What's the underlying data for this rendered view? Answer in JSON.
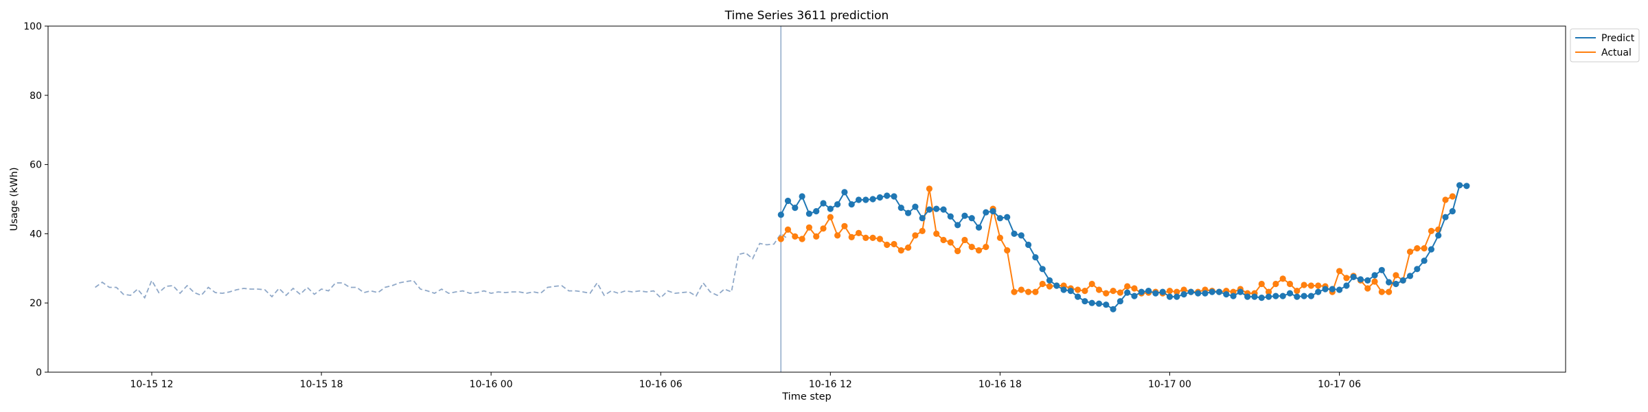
{
  "chart_data": {
    "type": "line",
    "title": "Time Series 3611 prediction",
    "xlabel": "Time step",
    "ylabel": "Usage (kWh)",
    "ylim": [
      0,
      100
    ],
    "yticks": [
      0,
      20,
      40,
      60,
      80,
      100
    ],
    "xlim": [
      "2024-10-15 08:20",
      "2024-10-17 14:00"
    ],
    "xticks": [
      {
        "label": "10-15 12",
        "t": "2024-10-15 12:00"
      },
      {
        "label": "10-15 18",
        "t": "2024-10-15 18:00"
      },
      {
        "label": "10-16 00",
        "t": "2024-10-16 00:00"
      },
      {
        "label": "10-16 06",
        "t": "2024-10-16 06:00"
      },
      {
        "label": "10-16 12",
        "t": "2024-10-16 12:00"
      },
      {
        "label": "10-16 18",
        "t": "2024-10-16 18:00"
      },
      {
        "label": "10-17 00",
        "t": "2024-10-17 00:00"
      },
      {
        "label": "10-17 06",
        "t": "2024-10-17 06:00"
      }
    ],
    "interval_minutes": 15,
    "history_start": "2024-10-15 10:00",
    "forecast_start": "2024-10-16 10:15",
    "forecast_marker": "2024-10-16 10:15",
    "legend_position": "outside top-right",
    "grid": false,
    "colors": {
      "predict": "#1f77b4",
      "actual": "#ff7f0e",
      "history": "#8fa8c8",
      "marker": "#8fa8c8"
    },
    "series": [
      {
        "name": "Predict",
        "key": "predict",
        "values": [
          45.5,
          49.5,
          47.5,
          50.8,
          45.8,
          46.5,
          48.8,
          47.2,
          48.5,
          52.0,
          48.5,
          49.8,
          49.8,
          50.0,
          50.5,
          51.0,
          50.8,
          47.5,
          46.0,
          47.8,
          44.5,
          47.0,
          47.2,
          47.0,
          45.0,
          42.5,
          45.2,
          44.5,
          41.8,
          46.2,
          46.5,
          44.5,
          44.8,
          40.0,
          39.5,
          36.8,
          33.2,
          29.8,
          26.5,
          25.0,
          23.8,
          23.5,
          21.8,
          20.5,
          20.0,
          19.8,
          19.5,
          18.2,
          20.5,
          23.0,
          22.0,
          23.2,
          23.5,
          22.8,
          23.2,
          21.8,
          21.8,
          22.5,
          23.2,
          22.8,
          22.8,
          23.2,
          23.2,
          22.5,
          22.0,
          23.2,
          21.8,
          21.8,
          21.5,
          21.8,
          22.0,
          22.0,
          22.8,
          21.8,
          22.0,
          22.0,
          23.2,
          24.0,
          24.0,
          23.8,
          25.0,
          27.5,
          26.8,
          26.5,
          28.0,
          29.5,
          26.0,
          25.5,
          26.5,
          27.8,
          29.8,
          32.2,
          35.5,
          39.5,
          44.8,
          46.5,
          54.0,
          53.8
        ]
      },
      {
        "name": "Actual",
        "key": "actual",
        "values": [
          38.5,
          41.2,
          39.2,
          38.5,
          41.8,
          39.2,
          41.5,
          44.8,
          39.5,
          42.2,
          39.0,
          40.2,
          38.8,
          38.8,
          38.5,
          36.8,
          37.0,
          35.2,
          36.0,
          39.5,
          40.8,
          53.0,
          40.0,
          38.2,
          37.5,
          35.0,
          38.2,
          36.2,
          35.2,
          36.2,
          47.2,
          38.8,
          35.2,
          23.2,
          23.8,
          23.2,
          23.2,
          25.5,
          24.8,
          25.0,
          25.0,
          24.2,
          23.8,
          23.5,
          25.5,
          23.8,
          22.8,
          23.5,
          23.0,
          24.8,
          24.2,
          22.8,
          23.0,
          23.2,
          22.8,
          23.5,
          23.2,
          23.8,
          23.2,
          23.2,
          23.8,
          23.5,
          23.2,
          23.5,
          23.2,
          24.0,
          22.8,
          22.8,
          25.5,
          23.2,
          25.5,
          27.0,
          25.5,
          23.5,
          25.2,
          25.0,
          25.0,
          24.8,
          23.2,
          29.2,
          27.2,
          27.8,
          26.5,
          24.2,
          26.2,
          23.2,
          23.2,
          28.0,
          26.5,
          34.8,
          35.8,
          35.8,
          40.8,
          41.2,
          49.8,
          50.8
        ]
      },
      {
        "name": "",
        "key": "history",
        "values": [
          24.5,
          26.0,
          24.5,
          24.5,
          22.5,
          22.2,
          24.0,
          21.5,
          26.5,
          23.0,
          24.8,
          25.0,
          22.8,
          25.0,
          23.0,
          22.2,
          24.5,
          23.0,
          22.8,
          23.2,
          23.8,
          24.2,
          24.0,
          24.0,
          23.8,
          21.8,
          24.2,
          22.2,
          24.2,
          22.5,
          24.5,
          22.5,
          24.0,
          23.5,
          25.8,
          25.8,
          24.5,
          24.5,
          23.0,
          23.5,
          23.0,
          24.5,
          25.0,
          25.8,
          26.2,
          26.5,
          24.0,
          23.5,
          22.8,
          24.0,
          22.8,
          23.2,
          23.5,
          22.8,
          23.0,
          23.5,
          22.8,
          23.2,
          23.0,
          23.2,
          23.2,
          22.8,
          23.2,
          22.8,
          24.5,
          24.8,
          25.0,
          23.5,
          23.5,
          23.2,
          22.8,
          25.8,
          22.2,
          23.5,
          22.8,
          23.5,
          23.2,
          23.5,
          23.2,
          23.5,
          21.5,
          23.5,
          22.8,
          23.0,
          23.2,
          22.0,
          25.8,
          23.2,
          22.2,
          24.0,
          23.2,
          34.0,
          34.5,
          32.8,
          37.2,
          36.8,
          37.0,
          40.0,
          38.5
        ]
      }
    ]
  }
}
